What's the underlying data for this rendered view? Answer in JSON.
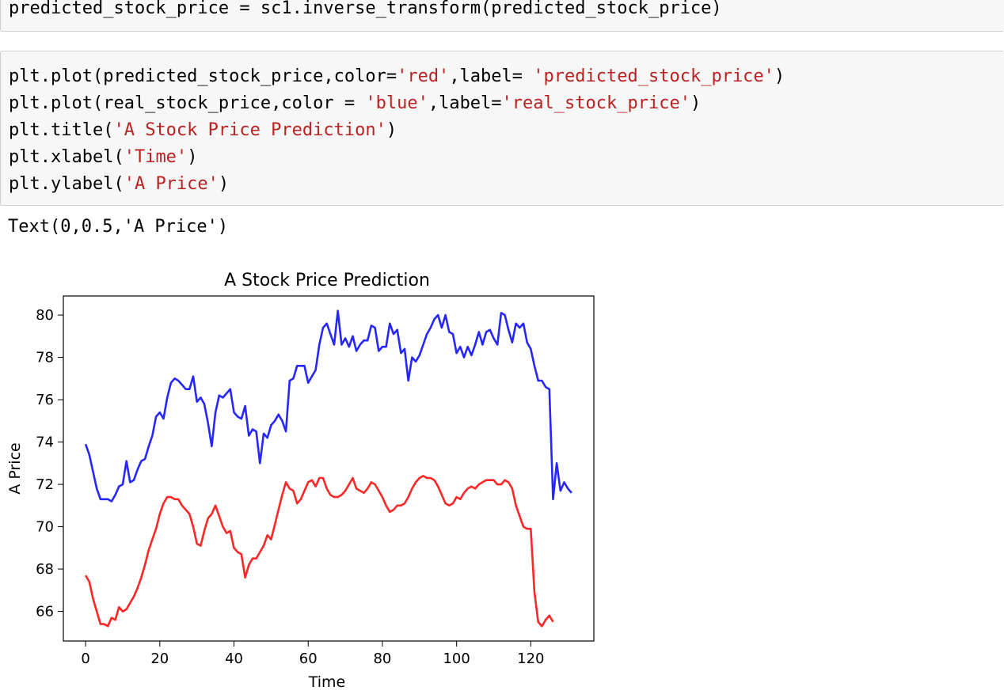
{
  "cell1": {
    "code": "predicted_stock_price = sc1.inverse_transform(predicted_stock_price)"
  },
  "cell2": {
    "lines": [
      [
        {
          "t": "plt.plot(predicted_stock_price,color=",
          "s": false
        },
        {
          "t": "'red'",
          "s": true
        },
        {
          "t": ",label= ",
          "s": false
        },
        {
          "t": "'predicted_stock_price'",
          "s": true
        },
        {
          "t": ")",
          "s": false
        }
      ],
      [
        {
          "t": "plt.plot(real_stock_price,color = ",
          "s": false
        },
        {
          "t": "'blue'",
          "s": true
        },
        {
          "t": ",label=",
          "s": false
        },
        {
          "t": "'real_stock_price'",
          "s": true
        },
        {
          "t": ")",
          "s": false
        }
      ],
      [
        {
          "t": "plt.title(",
          "s": false
        },
        {
          "t": "'A Stock Price Prediction'",
          "s": true
        },
        {
          "t": ")",
          "s": false
        }
      ],
      [
        {
          "t": "plt.xlabel(",
          "s": false
        },
        {
          "t": "'Time'",
          "s": true
        },
        {
          "t": ")",
          "s": false
        }
      ],
      [
        {
          "t": "plt.ylabel(",
          "s": false
        },
        {
          "t": "'A Price'",
          "s": true
        },
        {
          "t": ")",
          "s": false
        }
      ]
    ]
  },
  "output": {
    "text": "Text(0,0.5,'A Price')"
  },
  "chart_data": {
    "type": "line",
    "title": "A Stock Price Prediction",
    "xlabel": "Time",
    "ylabel": "A Price",
    "xlim": [
      -6,
      137
    ],
    "ylim": [
      64.6,
      80.9
    ],
    "xticks": [
      0,
      20,
      40,
      60,
      80,
      100,
      120
    ],
    "yticks": [
      66,
      68,
      70,
      72,
      74,
      76,
      78,
      80
    ],
    "grid": false,
    "legend": "none",
    "series": [
      {
        "color": "#0000ff",
        "points": [
          [
            0,
            73.9
          ],
          [
            1,
            73.4
          ],
          [
            2,
            72.6
          ],
          [
            3,
            71.8
          ],
          [
            4,
            71.3
          ],
          [
            5,
            71.3
          ],
          [
            6,
            71.3
          ],
          [
            7,
            71.2
          ],
          [
            8,
            71.5
          ],
          [
            9,
            71.9
          ],
          [
            10,
            72.0
          ],
          [
            11,
            73.1
          ],
          [
            12,
            72.1
          ],
          [
            13,
            72.2
          ],
          [
            14,
            72.7
          ],
          [
            15,
            73.1
          ],
          [
            16,
            73.2
          ],
          [
            17,
            73.8
          ],
          [
            18,
            74.3
          ],
          [
            19,
            75.2
          ],
          [
            20,
            75.4
          ],
          [
            21,
            75.1
          ],
          [
            22,
            76.1
          ],
          [
            23,
            76.8
          ],
          [
            24,
            77.0
          ],
          [
            25,
            76.9
          ],
          [
            26,
            76.7
          ],
          [
            27,
            76.5
          ],
          [
            28,
            76.5
          ],
          [
            29,
            77.1
          ],
          [
            30,
            75.9
          ],
          [
            31,
            76.1
          ],
          [
            32,
            75.8
          ],
          [
            33,
            74.9
          ],
          [
            34,
            73.8
          ],
          [
            35,
            75.4
          ],
          [
            36,
            76.2
          ],
          [
            37,
            76.1
          ],
          [
            38,
            76.3
          ],
          [
            39,
            76.5
          ],
          [
            40,
            75.4
          ],
          [
            41,
            75.2
          ],
          [
            42,
            75.1
          ],
          [
            43,
            75.7
          ],
          [
            44,
            74.3
          ],
          [
            45,
            74.6
          ],
          [
            46,
            74.5
          ],
          [
            47,
            73.0
          ],
          [
            48,
            74.4
          ],
          [
            49,
            74.2
          ],
          [
            50,
            74.8
          ],
          [
            51,
            75.0
          ],
          [
            52,
            75.3
          ],
          [
            53,
            75.0
          ],
          [
            54,
            74.5
          ],
          [
            55,
            76.9
          ],
          [
            56,
            77.0
          ],
          [
            57,
            77.6
          ],
          [
            58,
            77.6
          ],
          [
            59,
            77.6
          ],
          [
            60,
            76.8
          ],
          [
            61,
            77.1
          ],
          [
            62,
            77.4
          ],
          [
            63,
            78.6
          ],
          [
            64,
            79.4
          ],
          [
            65,
            79.6
          ],
          [
            66,
            79.1
          ],
          [
            67,
            78.6
          ],
          [
            68,
            80.2
          ],
          [
            69,
            78.6
          ],
          [
            70,
            78.9
          ],
          [
            71,
            78.5
          ],
          [
            72,
            79.0
          ],
          [
            73,
            78.3
          ],
          [
            74,
            78.6
          ],
          [
            75,
            78.8
          ],
          [
            76,
            78.8
          ],
          [
            77,
            79.5
          ],
          [
            78,
            79.4
          ],
          [
            79,
            78.3
          ],
          [
            80,
            78.5
          ],
          [
            81,
            78.5
          ],
          [
            82,
            79.6
          ],
          [
            83,
            79.1
          ],
          [
            84,
            79.3
          ],
          [
            85,
            78.2
          ],
          [
            86,
            78.4
          ],
          [
            87,
            76.9
          ],
          [
            88,
            78.0
          ],
          [
            89,
            77.8
          ],
          [
            90,
            78.1
          ],
          [
            91,
            78.6
          ],
          [
            92,
            79.1
          ],
          [
            93,
            79.4
          ],
          [
            94,
            79.8
          ],
          [
            95,
            80.0
          ],
          [
            96,
            79.4
          ],
          [
            97,
            80.0
          ],
          [
            98,
            79.2
          ],
          [
            99,
            79.1
          ],
          [
            100,
            78.2
          ],
          [
            101,
            78.5
          ],
          [
            102,
            78.0
          ],
          [
            103,
            78.5
          ],
          [
            104,
            78.1
          ],
          [
            105,
            78.6
          ],
          [
            106,
            79.2
          ],
          [
            107,
            78.6
          ],
          [
            108,
            79.2
          ],
          [
            109,
            79.3
          ],
          [
            110,
            78.9
          ],
          [
            111,
            78.6
          ],
          [
            112,
            80.1
          ],
          [
            113,
            80.0
          ],
          [
            114,
            79.3
          ],
          [
            115,
            78.7
          ],
          [
            116,
            79.6
          ],
          [
            117,
            79.4
          ],
          [
            118,
            79.6
          ],
          [
            119,
            78.7
          ],
          [
            120,
            78.4
          ],
          [
            121,
            77.6
          ],
          [
            122,
            76.9
          ],
          [
            123,
            76.9
          ],
          [
            124,
            76.6
          ],
          [
            125,
            76.5
          ],
          [
            126,
            71.3
          ],
          [
            127,
            73.0
          ],
          [
            128,
            71.7
          ],
          [
            129,
            72.1
          ],
          [
            130,
            71.8
          ],
          [
            131,
            71.6
          ]
        ]
      },
      {
        "color": "#ff0000",
        "points": [
          [
            0,
            67.7
          ],
          [
            1,
            67.4
          ],
          [
            2,
            66.6
          ],
          [
            3,
            66.0
          ],
          [
            4,
            65.4
          ],
          [
            5,
            65.4
          ],
          [
            6,
            65.3
          ],
          [
            7,
            65.7
          ],
          [
            8,
            65.6
          ],
          [
            9,
            66.2
          ],
          [
            10,
            66.0
          ],
          [
            11,
            66.1
          ],
          [
            12,
            66.4
          ],
          [
            13,
            66.7
          ],
          [
            14,
            67.1
          ],
          [
            15,
            67.6
          ],
          [
            16,
            68.2
          ],
          [
            17,
            68.9
          ],
          [
            18,
            69.4
          ],
          [
            19,
            69.9
          ],
          [
            20,
            70.6
          ],
          [
            21,
            71.1
          ],
          [
            22,
            71.4
          ],
          [
            23,
            71.4
          ],
          [
            24,
            71.3
          ],
          [
            25,
            71.3
          ],
          [
            26,
            71.0
          ],
          [
            27,
            70.8
          ],
          [
            28,
            70.6
          ],
          [
            29,
            70.0
          ],
          [
            30,
            69.2
          ],
          [
            31,
            69.1
          ],
          [
            32,
            69.8
          ],
          [
            33,
            70.4
          ],
          [
            34,
            70.6
          ],
          [
            35,
            71.0
          ],
          [
            36,
            70.5
          ],
          [
            37,
            70.0
          ],
          [
            38,
            69.7
          ],
          [
            39,
            69.8
          ],
          [
            40,
            69.0
          ],
          [
            41,
            68.8
          ],
          [
            42,
            68.7
          ],
          [
            43,
            67.6
          ],
          [
            44,
            68.2
          ],
          [
            45,
            68.5
          ],
          [
            46,
            68.5
          ],
          [
            47,
            68.8
          ],
          [
            48,
            69.1
          ],
          [
            49,
            69.6
          ],
          [
            50,
            69.4
          ],
          [
            51,
            70.1
          ],
          [
            52,
            70.8
          ],
          [
            53,
            71.5
          ],
          [
            54,
            72.1
          ],
          [
            55,
            71.8
          ],
          [
            56,
            71.7
          ],
          [
            57,
            71.1
          ],
          [
            58,
            71.3
          ],
          [
            59,
            71.7
          ],
          [
            60,
            72.1
          ],
          [
            61,
            72.2
          ],
          [
            62,
            71.9
          ],
          [
            63,
            72.3
          ],
          [
            64,
            72.3
          ],
          [
            65,
            71.8
          ],
          [
            66,
            71.5
          ],
          [
            67,
            71.4
          ],
          [
            68,
            71.4
          ],
          [
            69,
            71.5
          ],
          [
            70,
            71.7
          ],
          [
            71,
            72.0
          ],
          [
            72,
            72.3
          ],
          [
            73,
            71.8
          ],
          [
            74,
            71.7
          ],
          [
            75,
            71.6
          ],
          [
            76,
            71.8
          ],
          [
            77,
            72.1
          ],
          [
            78,
            72.0
          ],
          [
            79,
            71.7
          ],
          [
            80,
            71.4
          ],
          [
            81,
            71.0
          ],
          [
            82,
            70.7
          ],
          [
            83,
            70.8
          ],
          [
            84,
            71.0
          ],
          [
            85,
            71.0
          ],
          [
            86,
            71.1
          ],
          [
            87,
            71.4
          ],
          [
            88,
            71.8
          ],
          [
            89,
            72.1
          ],
          [
            90,
            72.3
          ],
          [
            91,
            72.4
          ],
          [
            92,
            72.3
          ],
          [
            93,
            72.3
          ],
          [
            94,
            72.2
          ],
          [
            95,
            71.9
          ],
          [
            96,
            71.5
          ],
          [
            97,
            71.1
          ],
          [
            98,
            71.0
          ],
          [
            99,
            71.1
          ],
          [
            100,
            71.4
          ],
          [
            101,
            71.3
          ],
          [
            102,
            71.6
          ],
          [
            103,
            71.8
          ],
          [
            104,
            71.9
          ],
          [
            105,
            71.8
          ],
          [
            106,
            72.0
          ],
          [
            107,
            72.1
          ],
          [
            108,
            72.2
          ],
          [
            109,
            72.2
          ],
          [
            110,
            72.2
          ],
          [
            111,
            72.0
          ],
          [
            112,
            72.0
          ],
          [
            113,
            72.2
          ],
          [
            114,
            72.1
          ],
          [
            115,
            71.8
          ],
          [
            116,
            71.0
          ],
          [
            117,
            70.5
          ],
          [
            118,
            70.0
          ],
          [
            119,
            69.9
          ],
          [
            120,
            69.9
          ],
          [
            121,
            66.9
          ],
          [
            122,
            65.5
          ],
          [
            123,
            65.3
          ],
          [
            124,
            65.6
          ],
          [
            125,
            65.8
          ],
          [
            126,
            65.5
          ]
        ]
      }
    ]
  }
}
